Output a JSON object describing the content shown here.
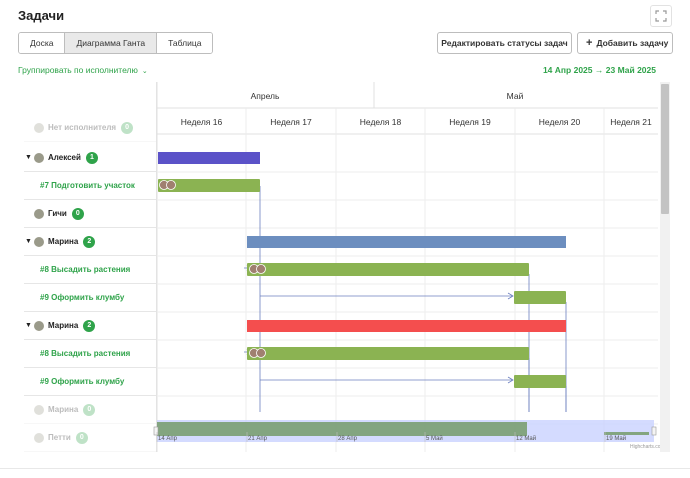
{
  "page": {
    "title": "Задачи"
  },
  "view_tabs": [
    {
      "label": "Доска",
      "active": false
    },
    {
      "label": "Диаграмма Ганта",
      "active": true
    },
    {
      "label": "Таблица",
      "active": false
    }
  ],
  "toolbar": {
    "edit_statuses_label": "Редактировать статусы задач",
    "add_task_label": "Добавить задачу",
    "add_icon": "plus-icon",
    "expand_icon": "fullscreen-icon"
  },
  "grouping": {
    "label": "Группировать по исполнителю",
    "icon": "chevron-down-icon"
  },
  "date_range": {
    "start": "14 Апр 2025",
    "arrow": "→",
    "end": "23 Май 2025"
  },
  "colors": {
    "accent": "#2fa34a",
    "parent_bar_alexey": "#5b52c8",
    "parent_bar_marina1": "#6c8ebf",
    "parent_bar_marina2": "#f44e4e",
    "task_bar": "#8bb352",
    "navigator": "#c9d2ff"
  },
  "timeline": {
    "months": [
      "Апрель",
      "Май"
    ],
    "weeks": [
      "Неделя 16",
      "Неделя 17",
      "Неделя 18",
      "Неделя 19",
      "Неделя 20",
      "Неделя 21"
    ]
  },
  "rows": [
    {
      "kind": "group",
      "name": "Нет исполнителя",
      "count": "0",
      "faded": true,
      "expanded": false
    },
    {
      "kind": "group",
      "name": "Алексей",
      "count": "1",
      "faded": false,
      "expanded": true
    },
    {
      "kind": "task",
      "name": "#7 Подготовить участок"
    },
    {
      "kind": "group",
      "name": "Гичи",
      "count": "0",
      "faded": false,
      "expanded": false
    },
    {
      "kind": "group",
      "name": "Марина",
      "count": "2",
      "faded": false,
      "expanded": true
    },
    {
      "kind": "task",
      "name": "#8 Высадить растения"
    },
    {
      "kind": "task",
      "name": "#9 Оформить клумбу"
    },
    {
      "kind": "group",
      "name": "Марина",
      "count": "2",
      "faded": false,
      "expanded": true
    },
    {
      "kind": "task",
      "name": "#8 Высадить растения"
    },
    {
      "kind": "task",
      "name": "#9 Оформить клумбу"
    },
    {
      "kind": "group",
      "name": "Марина",
      "count": "0",
      "faded": true,
      "expanded": false
    },
    {
      "kind": "group",
      "name": "Петти",
      "count": "0",
      "faded": true,
      "expanded": false
    }
  ],
  "navigator": {
    "labels": [
      "14 Апр",
      "21 Апр",
      "28 Апр",
      "5 Май",
      "12 Май",
      "19 Май"
    ]
  },
  "credits": "Highcharts.com"
}
